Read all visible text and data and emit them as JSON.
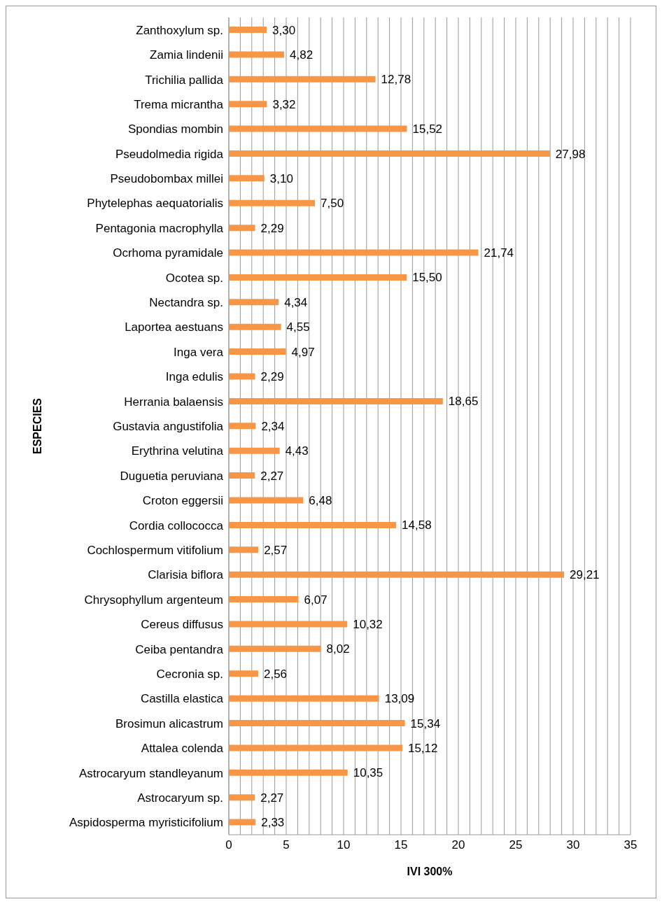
{
  "chart_data": {
    "type": "bar",
    "orientation": "horizontal",
    "xlabel": "IVI 300%",
    "ylabel": "ESPECIES",
    "categories": [
      "Zanthoxylum sp.",
      "Zamia lindenii",
      "Trichilia pallida",
      "Trema micrantha",
      "Spondias mombin",
      "Pseudolmedia rigida",
      "Pseudobombax millei",
      "Phytelephas aequatorialis",
      "Pentagonia macrophylla",
      "Ocrhoma pyramidale",
      "Ocotea sp.",
      "Nectandra sp.",
      "Laportea aestuans",
      "Inga vera",
      "Inga edulis",
      "Herrania balaensis",
      "Gustavia angustifolia",
      "Erythrina velutina",
      "Duguetia peruviana",
      "Croton eggersii",
      "Cordia collococca",
      "Cochlospermum vitifolium",
      "Clarisia biflora",
      "Chrysophyllum argenteum",
      "Cereus diffusus",
      "Ceiba pentandra",
      "Cecronia sp.",
      "Castilla elastica",
      "Brosimun alicastrum",
      "Attalea colenda",
      "Astrocaryum standleyanum",
      "Astrocaryum sp.",
      "Aspidosperma myristicifolium"
    ],
    "values": [
      3.3,
      4.82,
      12.78,
      3.32,
      15.52,
      27.98,
      3.1,
      7.5,
      2.29,
      21.74,
      15.5,
      4.34,
      4.55,
      4.97,
      2.29,
      18.65,
      2.34,
      4.43,
      2.27,
      6.48,
      14.58,
      2.57,
      29.21,
      6.07,
      10.32,
      8.02,
      2.56,
      13.09,
      15.34,
      15.12,
      10.35,
      2.27,
      2.33
    ],
    "value_labels": [
      "3,30",
      "4,82",
      "12,78",
      "3,32",
      "15,52",
      "27,98",
      "3,10",
      "7,50",
      "2,29",
      "21,74",
      "15,50",
      "4,34",
      "4,55",
      "4,97",
      "2,29",
      "18,65",
      "2,34",
      "4,43",
      "2,27",
      "6,48",
      "14,58",
      "2,57",
      "29,21",
      "6,07",
      "10,32",
      "8,02",
      "2,56",
      "13,09",
      "15,34",
      "15,12",
      "10,35",
      "2,27",
      "2,33"
    ],
    "color": "#f79646",
    "xlim": [
      0,
      35
    ],
    "xticks": [
      0,
      {
        "value": 1,
        "label": null
      },
      {
        "value": 2,
        "label": null
      },
      {
        "value": 3,
        "label": null
      },
      {
        "value": 4,
        "label": null
      },
      5,
      {
        "value": 6,
        "label": null
      },
      {
        "value": 7,
        "label": null
      },
      {
        "value": 8,
        "label": null
      },
      {
        "value": 9,
        "label": null
      },
      10,
      {
        "value": 11,
        "label": null
      },
      {
        "value": 12,
        "label": null
      },
      {
        "value": 13,
        "label": null
      },
      {
        "value": 14,
        "label": null
      },
      15,
      {
        "value": 16,
        "label": null
      },
      {
        "value": 17,
        "label": null
      },
      {
        "value": 18,
        "label": null
      },
      {
        "value": 19,
        "label": null
      },
      20,
      {
        "value": 21,
        "label": null
      },
      {
        "value": 22,
        "label": null
      },
      {
        "value": 23,
        "label": null
      },
      {
        "value": 24,
        "label": null
      },
      25,
      {
        "value": 26,
        "label": null
      },
      {
        "value": 27,
        "label": null
      },
      {
        "value": 28,
        "label": null
      },
      {
        "value": 29,
        "label": null
      },
      30,
      {
        "value": 31,
        "label": null
      },
      {
        "value": 32,
        "label": null
      },
      {
        "value": 33,
        "label": null
      },
      {
        "value": 34,
        "label": null
      },
      35
    ],
    "grid": "x",
    "legend": false
  }
}
